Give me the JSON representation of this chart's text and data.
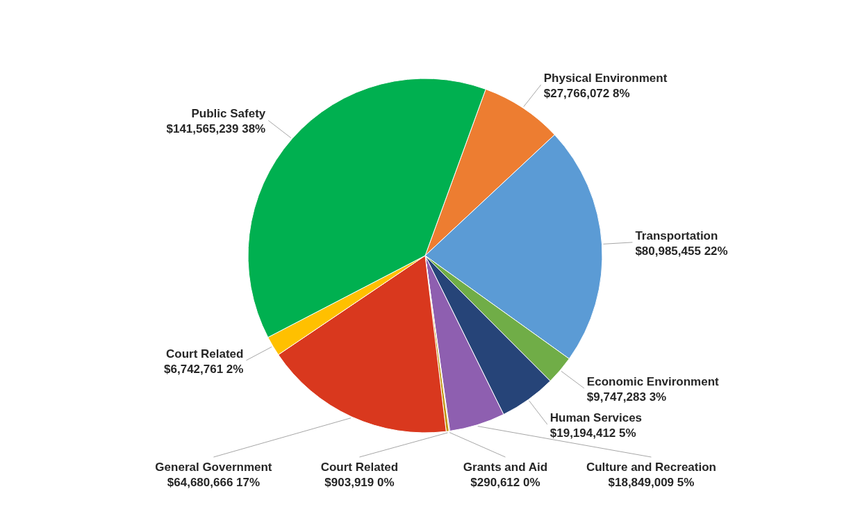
{
  "chart_data": {
    "type": "pie",
    "categories": [
      "Physical Environment",
      "Transportation",
      "Economic Environment",
      "Human Services",
      "Culture and Recreation",
      "Grants and Aid",
      "Court Related",
      "General Government",
      "Court Related",
      "Public Safety"
    ],
    "values": [
      27766072,
      80985455,
      9747283,
      19194412,
      18849009,
      290612,
      903919,
      64680666,
      6742761,
      141565239
    ],
    "value_labels": [
      "$27,766,072  8%",
      "$80,985,455  22%",
      "$9,747,283  3%",
      "$19,194,412  5%",
      "$18,849,009  5%",
      "$290,612  0%",
      "$903,919  0%",
      "$64,680,666  17%",
      "$6,742,761  2%",
      "$141,565,239  38%"
    ],
    "colors": [
      "#ed7d31",
      "#5b9bd5",
      "#70ad47",
      "#264478",
      "#8e5fb0",
      "#997300",
      "#c09000",
      "#d9381e",
      "#ffc000",
      "#00b050"
    ]
  }
}
